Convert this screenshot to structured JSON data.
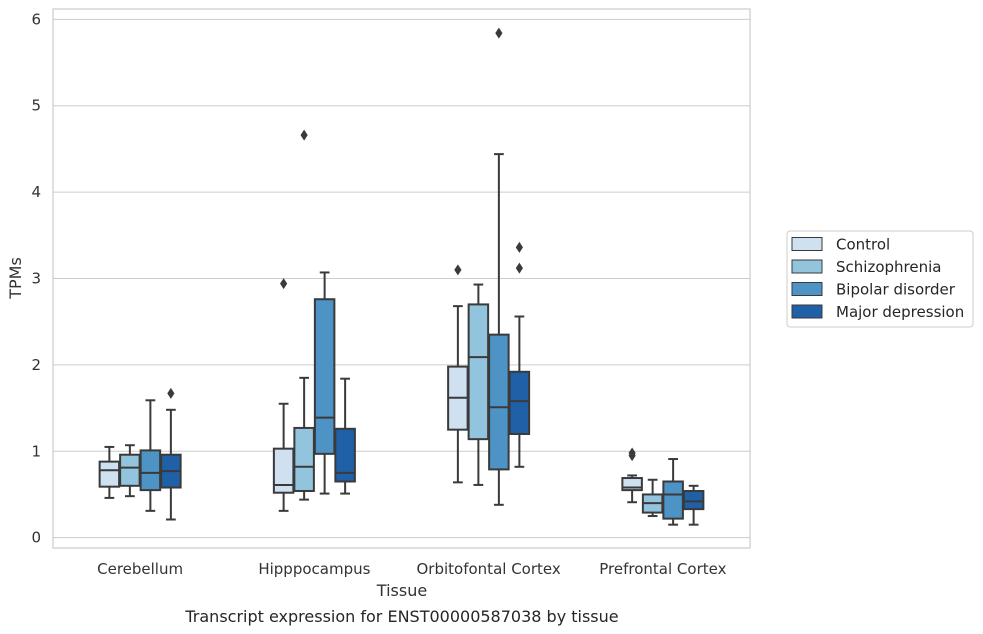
{
  "chart_data": {
    "type": "box",
    "title": "",
    "caption": "Transcript expression for ENST00000587038 by tissue",
    "xlabel": "Tissue",
    "ylabel": "TPMs",
    "ylim": [
      -0.12,
      6.12
    ],
    "yticks": [
      "0",
      "1",
      "2",
      "3",
      "4",
      "5",
      "6"
    ],
    "grid": "horizontal",
    "legend_position": "right",
    "categories": [
      "Cerebellum",
      "Hipppocampus",
      "Orbitofontal Cortex",
      "Prefrontal Cortex"
    ],
    "series": [
      {
        "name": "Control",
        "color": "#cfe0f1",
        "boxes": [
          {
            "whisker_low": 0.46,
            "q1": 0.59,
            "median": 0.78,
            "q3": 0.88,
            "whisker_high": 1.05,
            "outliers": []
          },
          {
            "whisker_low": 0.31,
            "q1": 0.52,
            "median": 0.61,
            "q3": 1.03,
            "whisker_high": 1.55,
            "outliers": [
              2.94
            ]
          },
          {
            "whisker_low": 0.64,
            "q1": 1.25,
            "median": 1.62,
            "q3": 1.98,
            "whisker_high": 2.68,
            "outliers": [
              3.1
            ]
          },
          {
            "whisker_low": 0.41,
            "q1": 0.55,
            "median": 0.58,
            "q3": 0.69,
            "whisker_high": 0.72,
            "outliers": [
              0.95,
              0.98
            ]
          }
        ]
      },
      {
        "name": "Schizophrenia",
        "color": "#93c4de",
        "boxes": [
          {
            "whisker_low": 0.48,
            "q1": 0.6,
            "median": 0.81,
            "q3": 0.96,
            "whisker_high": 1.07,
            "outliers": []
          },
          {
            "whisker_low": 0.44,
            "q1": 0.54,
            "median": 0.82,
            "q3": 1.27,
            "whisker_high": 1.85,
            "outliers": [
              4.66
            ]
          },
          {
            "whisker_low": 0.61,
            "q1": 1.14,
            "median": 2.09,
            "q3": 2.7,
            "whisker_high": 2.93,
            "outliers": []
          },
          {
            "whisker_low": 0.25,
            "q1": 0.29,
            "median": 0.4,
            "q3": 0.5,
            "whisker_high": 0.67,
            "outliers": []
          }
        ]
      },
      {
        "name": "Bipolar disorder",
        "color": "#4d93c6",
        "boxes": [
          {
            "whisker_low": 0.31,
            "q1": 0.55,
            "median": 0.75,
            "q3": 1.01,
            "whisker_high": 1.59,
            "outliers": []
          },
          {
            "whisker_low": 0.51,
            "q1": 0.97,
            "median": 1.39,
            "q3": 2.76,
            "whisker_high": 3.07,
            "outliers": []
          },
          {
            "whisker_low": 0.38,
            "q1": 0.79,
            "median": 1.51,
            "q3": 2.35,
            "whisker_high": 4.44,
            "outliers": [
              5.84
            ]
          },
          {
            "whisker_low": 0.15,
            "q1": 0.22,
            "median": 0.5,
            "q3": 0.65,
            "whisker_high": 0.91,
            "outliers": []
          }
        ]
      },
      {
        "name": "Major depression",
        "color": "#2060a6",
        "boxes": [
          {
            "whisker_low": 0.21,
            "q1": 0.58,
            "median": 0.77,
            "q3": 0.96,
            "whisker_high": 1.48,
            "outliers": [
              1.67
            ]
          },
          {
            "whisker_low": 0.51,
            "q1": 0.65,
            "median": 0.75,
            "q3": 1.26,
            "whisker_high": 1.84,
            "outliers": []
          },
          {
            "whisker_low": 0.82,
            "q1": 1.2,
            "median": 1.58,
            "q3": 1.92,
            "whisker_high": 2.56,
            "outliers": [
              3.12,
              3.36
            ]
          },
          {
            "whisker_low": 0.15,
            "q1": 0.33,
            "median": 0.42,
            "q3": 0.54,
            "whisker_high": 0.6,
            "outliers": []
          }
        ]
      }
    ]
  }
}
